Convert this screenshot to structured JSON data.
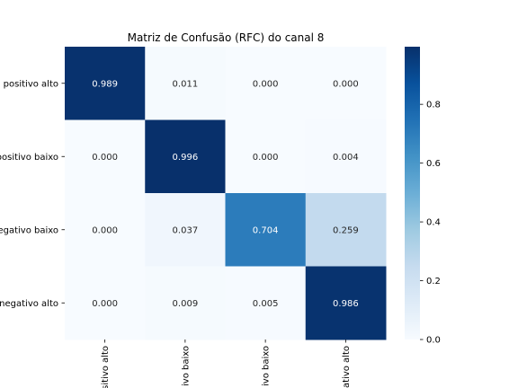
{
  "chart_data": {
    "type": "heatmap",
    "title": "Matriz de Confusão (RFC) do canal 8",
    "row_labels": [
      "o positivo alto",
      "positivo baixo",
      "egativo baixo",
      "negativo alto"
    ],
    "col_labels": [
      "sitivo alto",
      "ivo baixo",
      "ivo baixo",
      "ativo alto"
    ],
    "values": [
      [
        0.989,
        0.011,
        0.0,
        0.0
      ],
      [
        0.0,
        0.996,
        0.0,
        0.004
      ],
      [
        0.0,
        0.037,
        0.704,
        0.259
      ],
      [
        0.0,
        0.009,
        0.005,
        0.986
      ]
    ],
    "value_labels": [
      [
        "0.989",
        "0.011",
        "0.000",
        "0.000"
      ],
      [
        "0.000",
        "0.996",
        "0.000",
        "0.004"
      ],
      [
        "0.000",
        "0.037",
        "0.704",
        "0.259"
      ],
      [
        "0.000",
        "0.009",
        "0.005",
        "0.986"
      ]
    ],
    "colormap": "Blues",
    "colorbar": {
      "vmin": 0.0,
      "vmax": 0.996,
      "ticks": [
        0.0,
        0.2,
        0.4,
        0.6,
        0.8
      ],
      "tick_labels": [
        "0.0",
        "0.2",
        "0.4",
        "0.6",
        "0.8"
      ]
    },
    "grid": false
  }
}
